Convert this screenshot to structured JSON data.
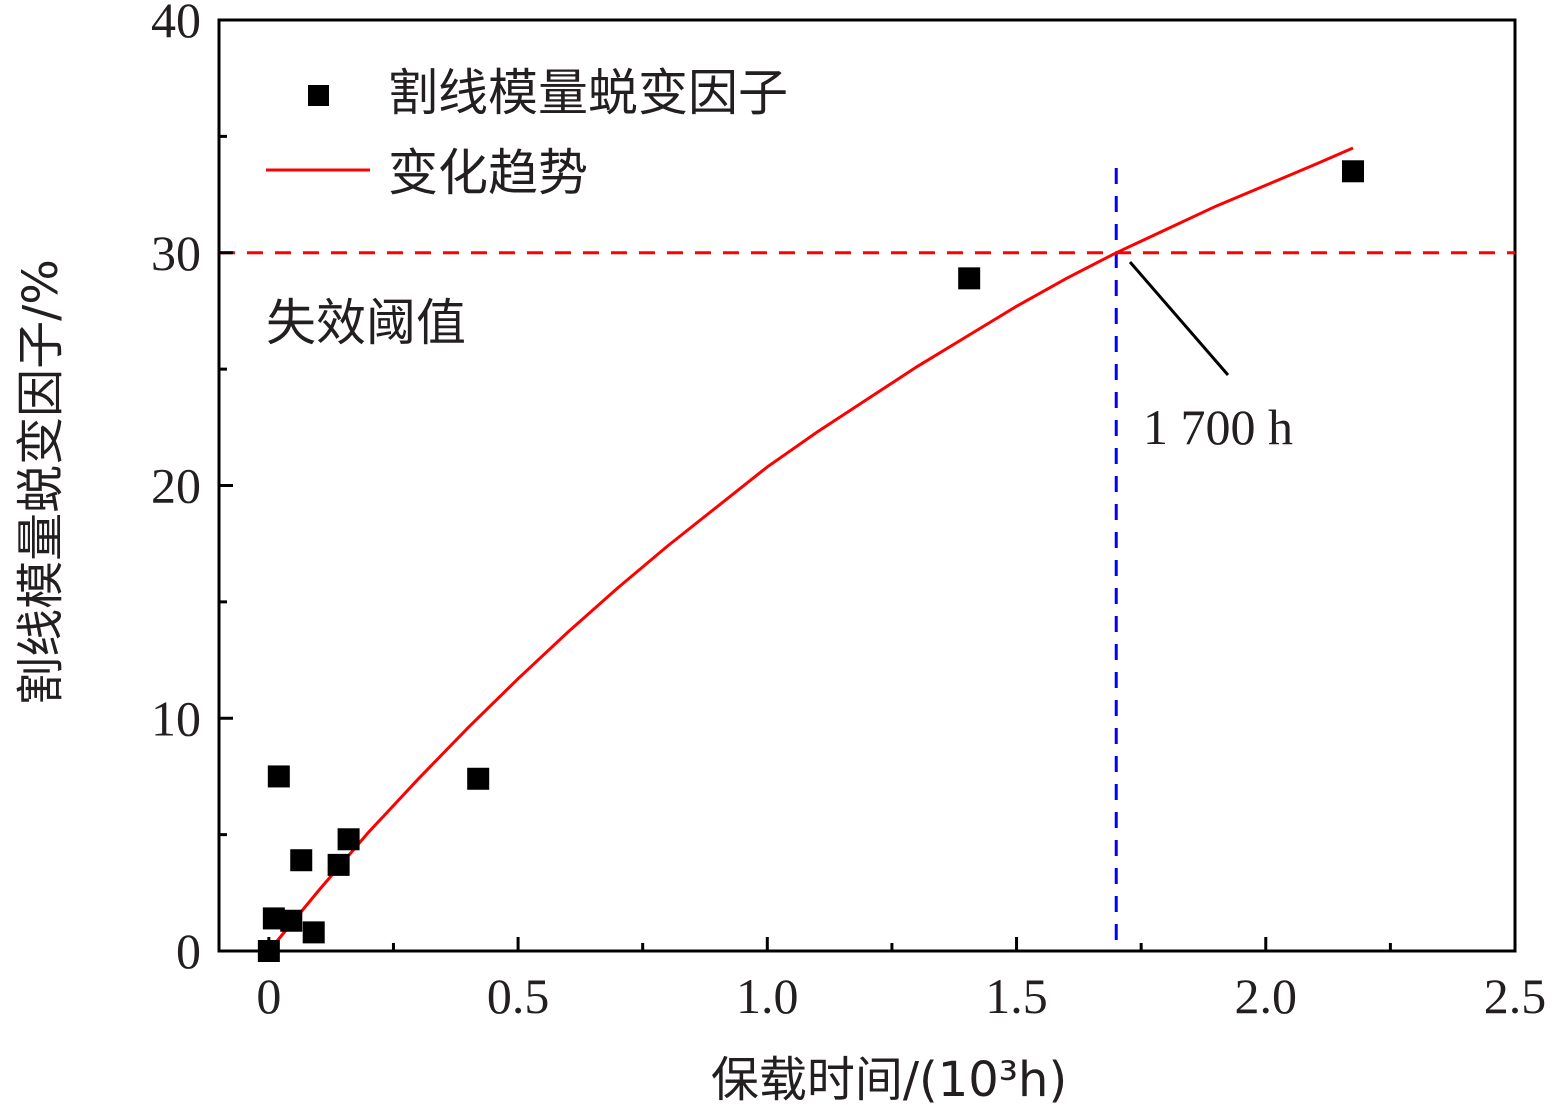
{
  "chart_data": {
    "type": "scatter",
    "xlabel": "保载时间/(10³h)",
    "ylabel": "割线模量蜕变因子/%",
    "xlim": [
      -0.1,
      2.5
    ],
    "ylim": [
      0,
      40
    ],
    "x_ticks": [
      0,
      0.5,
      1.0,
      1.5,
      2.0,
      2.5
    ],
    "x_tick_labels": [
      "0",
      "0.5",
      "1.0",
      "1.5",
      "2.0",
      "2.5"
    ],
    "y_ticks": [
      0,
      10,
      20,
      30,
      40
    ],
    "y_tick_labels": [
      "0",
      "10",
      "20",
      "30",
      "40"
    ],
    "legend_position": "top-left",
    "grid": false,
    "series": [
      {
        "name": "割线模量蜕变因子",
        "kind": "scatter",
        "marker": "square",
        "color": "#000000",
        "points": [
          {
            "x": 0.0,
            "y": 0.0
          },
          {
            "x": 0.01,
            "y": 1.4
          },
          {
            "x": 0.02,
            "y": 7.5
          },
          {
            "x": 0.045,
            "y": 1.3
          },
          {
            "x": 0.065,
            "y": 3.9
          },
          {
            "x": 0.09,
            "y": 0.8
          },
          {
            "x": 0.14,
            "y": 3.7
          },
          {
            "x": 0.16,
            "y": 4.8
          },
          {
            "x": 0.42,
            "y": 7.4
          },
          {
            "x": 1.405,
            "y": 28.9
          },
          {
            "x": 2.175,
            "y": 33.5
          }
        ]
      },
      {
        "name": "变化趋势",
        "kind": "line",
        "color": "#ff0000",
        "points": [
          {
            "x": 0.0,
            "y": 0.0
          },
          {
            "x": 0.1,
            "y": 2.6
          },
          {
            "x": 0.2,
            "y": 5.1
          },
          {
            "x": 0.3,
            "y": 7.4
          },
          {
            "x": 0.4,
            "y": 9.6
          },
          {
            "x": 0.5,
            "y": 11.7
          },
          {
            "x": 0.6,
            "y": 13.7
          },
          {
            "x": 0.7,
            "y": 15.6
          },
          {
            "x": 0.8,
            "y": 17.4
          },
          {
            "x": 0.9,
            "y": 19.1
          },
          {
            "x": 1.0,
            "y": 20.8
          },
          {
            "x": 1.1,
            "y": 22.3
          },
          {
            "x": 1.2,
            "y": 23.7
          },
          {
            "x": 1.3,
            "y": 25.1
          },
          {
            "x": 1.4,
            "y": 26.4
          },
          {
            "x": 1.5,
            "y": 27.7
          },
          {
            "x": 1.6,
            "y": 28.9
          },
          {
            "x": 1.7,
            "y": 30.0
          },
          {
            "x": 1.8,
            "y": 31.0
          },
          {
            "x": 1.9,
            "y": 32.0
          },
          {
            "x": 2.0,
            "y": 32.9
          },
          {
            "x": 2.1,
            "y": 33.8
          },
          {
            "x": 2.175,
            "y": 34.5
          }
        ]
      }
    ],
    "reference_lines": [
      {
        "orientation": "horizontal",
        "value": 30,
        "color": "#ff0000",
        "style": "dashed",
        "label": "失效阈值"
      },
      {
        "orientation": "vertical",
        "value": 1.7,
        "color": "#0000ff",
        "style": "dashed"
      }
    ],
    "annotations": [
      {
        "text": "1 700 h",
        "target_x": 1.7,
        "target_y": 30
      }
    ]
  }
}
